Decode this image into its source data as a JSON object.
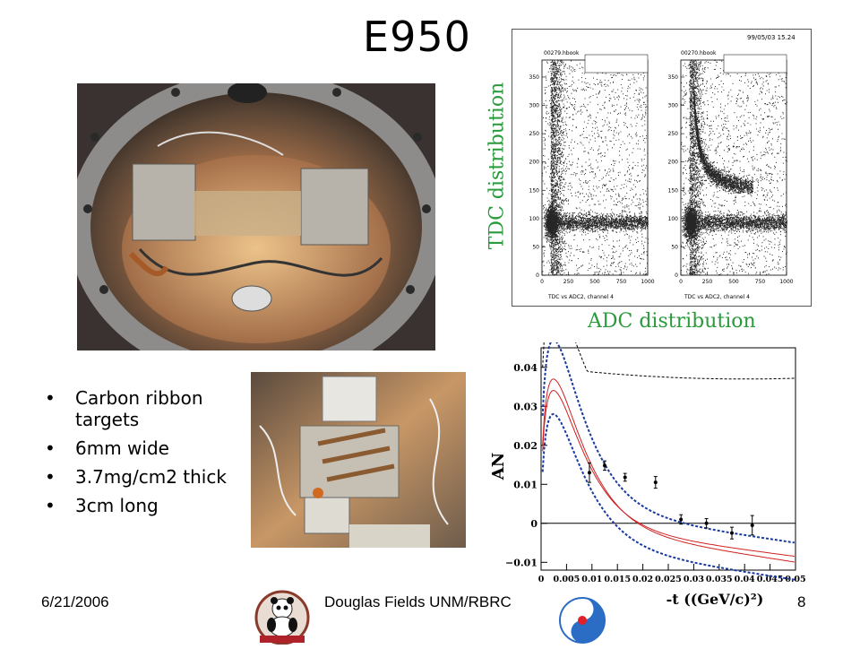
{
  "slide": {
    "title": "E950",
    "bullets": [
      "Carbon ribbon targets",
      "6mm wide",
      "3.7mg/cm2 thick",
      "3cm long"
    ],
    "tdc_label": "TDC distribution",
    "adc_label": "ADC distribution",
    "footer": {
      "date": "6/21/2006",
      "author": "Douglas Fields UNM/RBRC",
      "page": "8"
    }
  },
  "tdc_plot": {
    "date_stamp": "99/05/03  15.24",
    "left": {
      "filename": "00279.hbook",
      "xlabel": "TDC vs ADC2, channel 4",
      "yticks": [
        "0",
        "50",
        "100",
        "150",
        "200",
        "250",
        "300",
        "350"
      ],
      "xticks": [
        "0",
        "250",
        "500",
        "750",
        "1000"
      ]
    },
    "right": {
      "filename": "00270.hbook",
      "xlabel": "TDC vs ADC2, channel 4",
      "yticks": [
        "0",
        "50",
        "100",
        "150",
        "200",
        "250",
        "300",
        "350"
      ],
      "xticks": [
        "0",
        "250",
        "500",
        "750",
        "1000"
      ]
    }
  },
  "chart_data": {
    "type": "scatter",
    "xlabel": "-t ((GeV/c)²)",
    "ylabel": "A_N",
    "xlim": [
      0,
      0.05
    ],
    "ylim": [
      -0.012,
      0.045
    ],
    "xticks": [
      "0",
      "0.005",
      "0.01",
      "0.015",
      "0.02",
      "0.025",
      "0.03",
      "0.035",
      "0.04",
      "0.045",
      "0.05"
    ],
    "yticks": [
      "−0.01",
      "0",
      "0.01",
      "0.02",
      "0.03",
      "0.04"
    ],
    "series": [
      {
        "points": [
          {
            "x": 0.0095,
            "y": 0.013,
            "err": 0.0025
          },
          {
            "x": 0.0125,
            "y": 0.0148,
            "err": 0.0012
          },
          {
            "x": 0.0165,
            "y": 0.0118,
            "err": 0.001
          },
          {
            "x": 0.0225,
            "y": 0.0105,
            "err": 0.0015
          },
          {
            "x": 0.0275,
            "y": 0.001,
            "err": 0.0012
          },
          {
            "x": 0.0325,
            "y": 0.0,
            "err": 0.0012
          },
          {
            "x": 0.0375,
            "y": -0.0025,
            "err": 0.0015
          },
          {
            "x": 0.0415,
            "y": -0.0005,
            "err": 0.0025
          }
        ]
      }
    ]
  }
}
